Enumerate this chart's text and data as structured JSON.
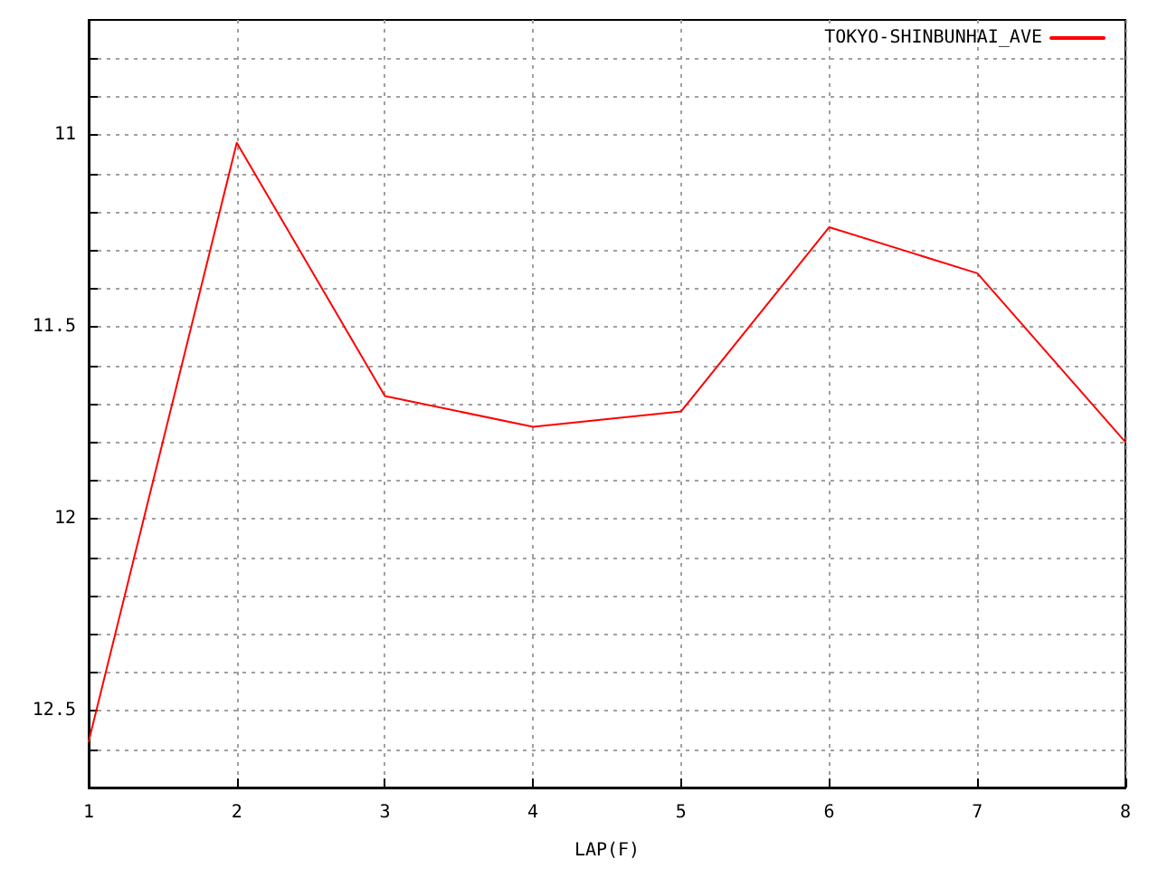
{
  "chart_data": {
    "type": "line",
    "xlabel": "LAP(F)",
    "x": [
      1,
      2,
      3,
      4,
      5,
      6,
      7,
      8
    ],
    "series": [
      {
        "name": "TOKYO-SHINBUNHAI_AVE",
        "color": "#ff0000",
        "values": [
          12.58,
          11.02,
          11.68,
          11.76,
          11.72,
          11.24,
          11.36,
          11.8
        ]
      }
    ],
    "xlim": [
      1,
      8
    ],
    "xticks": [
      1,
      2,
      3,
      4,
      5,
      6,
      7,
      8
    ],
    "ylim": [
      12.7,
      10.7
    ],
    "yticks": [
      {
        "value": 10.8,
        "label": null
      },
      {
        "value": 10.9,
        "label": null
      },
      11,
      {
        "value": 11.1,
        "label": null
      },
      {
        "value": 11.2,
        "label": null
      },
      {
        "value": 11.3,
        "label": null
      },
      {
        "value": 11.4,
        "label": null
      },
      11.5,
      {
        "value": 11.6,
        "label": null
      },
      {
        "value": 11.7,
        "label": null
      },
      {
        "value": 11.8,
        "label": null
      },
      {
        "value": 11.9,
        "label": null
      },
      12,
      {
        "value": 12.1,
        "label": null
      },
      {
        "value": 12.2,
        "label": null
      },
      {
        "value": 12.3,
        "label": null
      },
      {
        "value": 12.4,
        "label": null
      },
      12.5,
      {
        "value": 12.6,
        "label": null
      }
    ],
    "grid": true,
    "legend": "top right",
    "marker": "none",
    "line_style": "solid"
  }
}
